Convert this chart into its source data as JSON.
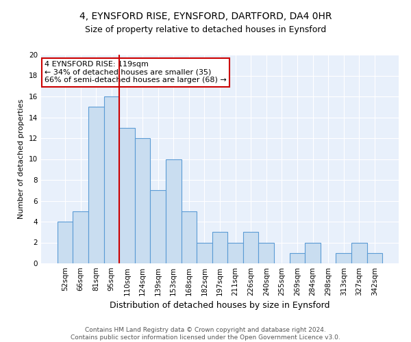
{
  "title": "4, EYNSFORD RISE, EYNSFORD, DARTFORD, DA4 0HR",
  "subtitle": "Size of property relative to detached houses in Eynsford",
  "xlabel": "Distribution of detached houses by size in Eynsford",
  "ylabel": "Number of detached properties",
  "categories": [
    "52sqm",
    "66sqm",
    "81sqm",
    "95sqm",
    "110sqm",
    "124sqm",
    "139sqm",
    "153sqm",
    "168sqm",
    "182sqm",
    "197sqm",
    "211sqm",
    "226sqm",
    "240sqm",
    "255sqm",
    "269sqm",
    "284sqm",
    "298sqm",
    "313sqm",
    "327sqm",
    "342sqm"
  ],
  "values": [
    4,
    5,
    15,
    16,
    13,
    12,
    7,
    10,
    5,
    2,
    3,
    2,
    3,
    2,
    0,
    1,
    2,
    0,
    1,
    2,
    1
  ],
  "bar_color": "#c9ddf0",
  "bar_edge_color": "#5b9bd5",
  "vline_x_index": 4,
  "vline_color": "#cc0000",
  "annotation_line1": "4 EYNSFORD RISE: 119sqm",
  "annotation_line2": "← 34% of detached houses are smaller (35)",
  "annotation_line3": "66% of semi-detached houses are larger (68) →",
  "annotation_box_color": "#ffffff",
  "annotation_box_edge": "#cc0000",
  "ylim": [
    0,
    20
  ],
  "yticks": [
    0,
    2,
    4,
    6,
    8,
    10,
    12,
    14,
    16,
    18,
    20
  ],
  "background_color": "#e8f0fb",
  "grid_color": "#ffffff",
  "footer_line1": "Contains HM Land Registry data © Crown copyright and database right 2024.",
  "footer_line2": "Contains public sector information licensed under the Open Government Licence v3.0.",
  "title_fontsize": 10,
  "subtitle_fontsize": 9,
  "xlabel_fontsize": 9,
  "ylabel_fontsize": 8,
  "tick_fontsize": 7.5,
  "annotation_fontsize": 8,
  "footer_fontsize": 6.5
}
